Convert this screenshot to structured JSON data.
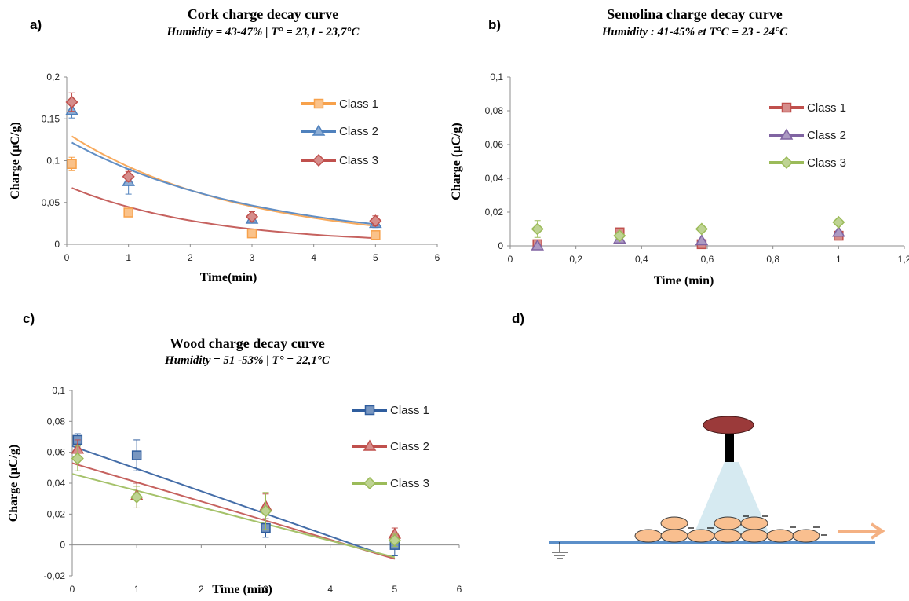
{
  "panels": {
    "a": "a)",
    "b": "b)",
    "c": "c)",
    "d": "d)"
  },
  "chart_data": [
    {
      "id": "a",
      "type": "scatter",
      "title": "Cork charge decay curve",
      "subtitle": "Humidity = 43-47%   |  T° = 23,1 - 23,7°C",
      "xlabel": "Time(min)",
      "ylabel": "Charge (µC/g)",
      "xlim": [
        0,
        6
      ],
      "ylim": [
        0,
        0.2
      ],
      "xticks": [
        "0",
        "1",
        "2",
        "3",
        "4",
        "5",
        "6"
      ],
      "yticks": [
        "0",
        "0,05",
        "0,1",
        "0,15",
        "0,2"
      ],
      "xtickvals": [
        0,
        1,
        2,
        3,
        4,
        5,
        6
      ],
      "ytickvals": [
        0,
        0.05,
        0.1,
        0.15,
        0.2
      ],
      "legend_position": "top-right",
      "trendline": "exponential",
      "series": [
        {
          "name": "Class 1",
          "color": "#f7a14b",
          "marker": "square",
          "x": [
            0.083,
            1,
            3,
            5
          ],
          "y": [
            0.096,
            0.038,
            0.013,
            0.011
          ],
          "err": [
            0.008,
            0.003,
            0.002,
            0.002
          ],
          "trend": {
            "a": 0.133,
            "k": 0.36
          }
        },
        {
          "name": "Class 2",
          "color": "#4f81bd",
          "marker": "triangle",
          "x": [
            0.083,
            1,
            3,
            5
          ],
          "y": [
            0.16,
            0.075,
            0.03,
            0.025
          ],
          "err": [
            0.009,
            0.015,
            0.004,
            0.005
          ],
          "trend": {
            "a": 0.125,
            "k": 0.33
          }
        },
        {
          "name": "Class 3",
          "color": "#c0504d",
          "marker": "diamond",
          "x": [
            0.083,
            1,
            3,
            5
          ],
          "y": [
            0.17,
            0.081,
            0.033,
            0.028
          ],
          "err": [
            0.011,
            0.006,
            0.006,
            0.006
          ],
          "trend": {
            "a": 0.07,
            "k": 0.45
          }
        }
      ]
    },
    {
      "id": "b",
      "type": "scatter",
      "title": "Semolina charge decay curve",
      "subtitle": "Humidity : 41-45%  et T°C = 23 - 24°C",
      "xlabel": "Time (min)",
      "ylabel": "Charge (µC/g)",
      "xlim": [
        0,
        1.2
      ],
      "ylim": [
        0,
        0.1
      ],
      "xticks": [
        "0",
        "0,2",
        "0,4",
        "0,6",
        "0,8",
        "1",
        "1,2"
      ],
      "yticks": [
        "0",
        "0,02",
        "0,04",
        "0,06",
        "0,08",
        "0,1"
      ],
      "xtickvals": [
        0,
        0.2,
        0.4,
        0.6,
        0.8,
        1,
        1.2
      ],
      "ytickvals": [
        0,
        0.02,
        0.04,
        0.06,
        0.08,
        0.1
      ],
      "legend_position": "right",
      "series": [
        {
          "name": "Class 1",
          "color": "#c0504d",
          "marker": "square",
          "x": [
            0.083,
            0.333,
            0.583,
            1
          ],
          "y": [
            0.001,
            0.008,
            0.001,
            0.006
          ],
          "err": [
            0.001,
            0.001,
            0.001,
            0.001
          ]
        },
        {
          "name": "Class 2",
          "color": "#8064a2",
          "marker": "triangle",
          "x": [
            0.083,
            0.333,
            0.583,
            1
          ],
          "y": [
            0.0,
            0.004,
            0.003,
            0.008
          ],
          "err": [
            0.001,
            0.001,
            0.001,
            0.001
          ]
        },
        {
          "name": "Class 3",
          "color": "#9bbb59",
          "marker": "diamond",
          "x": [
            0.083,
            0.333,
            0.583,
            1
          ],
          "y": [
            0.01,
            0.006,
            0.01,
            0.014
          ],
          "err": [
            0.005,
            0.002,
            0.001,
            0.001
          ]
        }
      ]
    },
    {
      "id": "c",
      "type": "scatter",
      "title": "Wood charge decay curve",
      "subtitle": "Humidity = 51 -53%   |  T° = 22,1°C",
      "xlabel": "Time (min)",
      "ylabel": "Charge (µC/g)",
      "xlim": [
        0,
        6
      ],
      "ylim": [
        -0.02,
        0.1
      ],
      "xticks": [
        "0",
        "1",
        "2",
        "3",
        "4",
        "5",
        "6"
      ],
      "yticks": [
        "-0,02",
        "0",
        "0,02",
        "0,04",
        "0,06",
        "0,08",
        "0,1"
      ],
      "xtickvals": [
        0,
        1,
        2,
        3,
        4,
        5,
        6
      ],
      "ytickvals": [
        -0.02,
        0,
        0.02,
        0.04,
        0.06,
        0.08,
        0.1
      ],
      "legend_position": "right",
      "trendline": "linear",
      "series": [
        {
          "name": "Class 1",
          "color": "#2f5d9e",
          "marker": "square",
          "x": [
            0.083,
            1,
            3,
            5
          ],
          "y": [
            0.068,
            0.058,
            0.011,
            0.0
          ],
          "err": [
            0.004,
            0.01,
            0.006,
            0.007
          ],
          "trend": {
            "y0": 0.064,
            "y5": -0.009
          }
        },
        {
          "name": "Class 2",
          "color": "#c0504d",
          "marker": "triangle",
          "x": [
            0.083,
            1,
            3,
            5
          ],
          "y": [
            0.062,
            0.032,
            0.025,
            0.007
          ],
          "err": [
            0.006,
            0.008,
            0.008,
            0.004
          ],
          "trend": {
            "y0": 0.053,
            "y5": -0.009
          }
        },
        {
          "name": "Class 3",
          "color": "#9bbb59",
          "marker": "diamond",
          "x": [
            0.083,
            1,
            3,
            5
          ],
          "y": [
            0.056,
            0.031,
            0.022,
            0.003
          ],
          "err": [
            0.008,
            0.007,
            0.012,
            0.004
          ],
          "trend": {
            "y0": 0.046,
            "y5": -0.008
          }
        }
      ]
    }
  ]
}
